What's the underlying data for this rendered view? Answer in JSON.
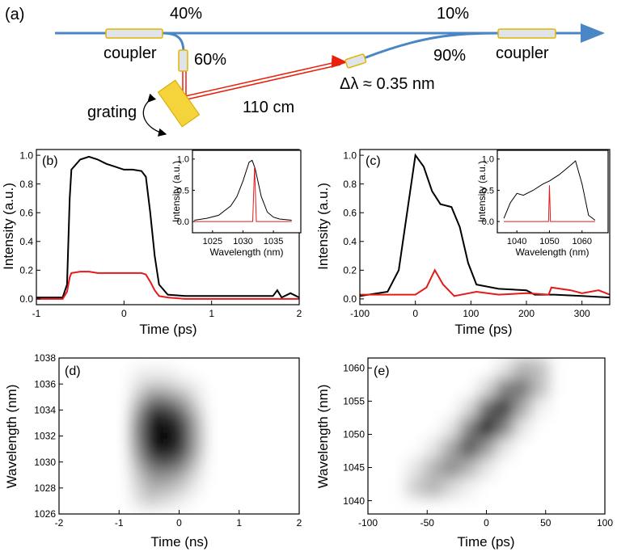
{
  "diagram": {
    "label": "(a)",
    "split_40": "40%",
    "split_10": "10%",
    "coupler_left": "coupler",
    "split_60": "60%",
    "split_90": "90%",
    "coupler_right": "coupler",
    "grating": "grating",
    "length": "110 cm",
    "bandwidth": "Δλ ≈ 0.35 nm"
  },
  "chart_data": [
    {
      "type": "line",
      "label": "(b)",
      "xlabel": "Time (ps)",
      "ylabel": "Intensity (a.u.)",
      "xlim": [
        -1,
        2
      ],
      "ylim": [
        -0.04,
        1.04
      ],
      "xticks": [
        -1,
        0,
        1,
        2
      ],
      "yticks": [
        {
          "value": 0,
          "label": "0.0"
        },
        0.2,
        0.4,
        0.6,
        0.8,
        {
          "value": 1,
          "label": "1.0"
        }
      ],
      "series": [
        {
          "color": "#000000",
          "x": [
            -1,
            -0.7,
            -0.65,
            -0.62,
            -0.6,
            -0.5,
            -0.4,
            -0.3,
            -0.2,
            -0.1,
            0,
            0.1,
            0.2,
            0.25,
            0.3,
            0.35,
            0.4,
            0.5,
            0.7,
            1,
            1.5,
            1.7,
            1.75,
            1.8,
            1.9,
            2
          ],
          "values": [
            0.01,
            0.01,
            0.1,
            0.7,
            0.9,
            0.97,
            0.99,
            0.97,
            0.94,
            0.92,
            0.9,
            0.9,
            0.89,
            0.85,
            0.6,
            0.3,
            0.1,
            0.03,
            0.02,
            0.02,
            0.02,
            0.02,
            0.06,
            0.01,
            0.04,
            0.01
          ]
        },
        {
          "color": "#e41a1c",
          "x": [
            -1,
            -0.7,
            -0.65,
            -0.62,
            -0.6,
            -0.5,
            -0.4,
            -0.3,
            -0.2,
            -0.1,
            0,
            0.1,
            0.2,
            0.25,
            0.3,
            0.35,
            0.4,
            0.5,
            0.7,
            1,
            1.5,
            1.7,
            1.75,
            1.8,
            1.9,
            2
          ],
          "values": [
            0,
            0,
            0.05,
            0.15,
            0.18,
            0.19,
            0.19,
            0.18,
            0.18,
            0.18,
            0.18,
            0.18,
            0.18,
            0.17,
            0.12,
            0.06,
            0.02,
            0.01,
            0,
            0,
            0,
            0,
            0,
            0,
            0,
            0
          ]
        }
      ]
    },
    {
      "type": "line",
      "xlabel": "Wavelength (nm)",
      "ylabel": "Intensity (a.u.)",
      "xlim": [
        1021.7,
        1039.5
      ],
      "ylim": [
        -0.18,
        1.14
      ],
      "xticks": [
        1025,
        1030,
        1035
      ],
      "yticks": [
        {
          "value": 0,
          "label": "0.0"
        },
        0.5,
        {
          "value": 1,
          "label": "1.0"
        }
      ],
      "series": [
        {
          "color": "#000000",
          "x": [
            1022,
            1024,
            1026,
            1028,
            1029,
            1030,
            1031,
            1031.5,
            1032,
            1033,
            1034,
            1035,
            1036,
            1038
          ],
          "values": [
            0.02,
            0.05,
            0.1,
            0.25,
            0.4,
            0.65,
            0.95,
            0.98,
            0.85,
            0.4,
            0.15,
            0.07,
            0.04,
            0.02
          ]
        },
        {
          "color": "#e41a1c",
          "x": [
            1022,
            1031.6,
            1031.9,
            1032.2,
            1038
          ],
          "values": [
            0,
            0,
            0.88,
            0,
            0
          ]
        }
      ]
    },
    {
      "type": "line",
      "label": "(c)",
      "xlabel": "Time (ps)",
      "ylabel": "Intensity (a.u.)",
      "xlim": [
        -100,
        350
      ],
      "ylim": [
        -0.04,
        1.04
      ],
      "xticks": [
        -100,
        0,
        100,
        200,
        300
      ],
      "yticks": [
        {
          "value": 0,
          "label": "0.0"
        },
        0.2,
        0.4,
        0.6,
        0.8,
        {
          "value": 1,
          "label": "1.0"
        }
      ],
      "series": [
        {
          "color": "#000000",
          "x": [
            -100,
            -50,
            -30,
            -15,
            0,
            15,
            30,
            45,
            65,
            80,
            95,
            110,
            150,
            200,
            215,
            250,
            300,
            350
          ],
          "values": [
            0.02,
            0.05,
            0.2,
            0.6,
            1,
            0.92,
            0.75,
            0.66,
            0.64,
            0.5,
            0.25,
            0.1,
            0.07,
            0.06,
            0.03,
            0.03,
            0.02,
            0.01
          ]
        },
        {
          "color": "#e41a1c",
          "x": [
            -100,
            0,
            20,
            35,
            50,
            70,
            110,
            150,
            200,
            240,
            245,
            280,
            300,
            330,
            350
          ],
          "values": [
            0.03,
            0.03,
            0.08,
            0.2,
            0.1,
            0.02,
            0.05,
            0.03,
            0.04,
            0.03,
            0.08,
            0.06,
            0.04,
            0.06,
            0.03
          ]
        }
      ]
    },
    {
      "type": "line",
      "xlabel": "Wavelength (nm)",
      "ylabel": "Intensity (a.u.)",
      "xlim": [
        1034,
        1068
      ],
      "ylim": [
        -0.18,
        1.14
      ],
      "xticks": [
        1040,
        1050,
        1060
      ],
      "yticks": [
        {
          "value": 0,
          "label": "0.0"
        },
        0.5,
        {
          "value": 1,
          "label": "1.0"
        }
      ],
      "series": [
        {
          "color": "#000000",
          "x": [
            1036,
            1038,
            1040,
            1042,
            1045,
            1048,
            1050,
            1053,
            1056,
            1058,
            1060,
            1062,
            1064
          ],
          "values": [
            0.05,
            0.3,
            0.45,
            0.42,
            0.5,
            0.6,
            0.65,
            0.75,
            0.88,
            0.97,
            0.6,
            0.1,
            0.02
          ]
        },
        {
          "color": "#e41a1c",
          "x": [
            1036,
            1049.7,
            1050,
            1050.3,
            1064
          ],
          "values": [
            0,
            0,
            0.58,
            0,
            0
          ]
        }
      ]
    },
    {
      "type": "heatmap",
      "label": "(d)",
      "xlabel": "Time (ns)",
      "ylabel": "Wavelength (nm)",
      "xlim": [
        -2,
        2
      ],
      "ylim": [
        1026,
        1038
      ],
      "xticks": [
        -2,
        -1,
        0,
        1,
        2
      ],
      "yticks": [
        1026,
        1028,
        1030,
        1032,
        1034,
        1036,
        1038
      ],
      "x": [
        -0.7,
        -0.5,
        -0.3,
        -0.1,
        0.1,
        0.3
      ],
      "y": [
        1027,
        1028,
        1029,
        1030,
        1031,
        1032,
        1033,
        1034,
        1035,
        1036,
        1037
      ],
      "z": [
        [
          0.1,
          0.2,
          0.15,
          0.1,
          0.05,
          0
        ],
        [
          0.15,
          0.3,
          0.3,
          0.25,
          0.15,
          0.05
        ],
        [
          0.2,
          0.4,
          0.45,
          0.4,
          0.3,
          0.1
        ],
        [
          0.3,
          0.6,
          0.7,
          0.65,
          0.5,
          0.2
        ],
        [
          0.4,
          0.85,
          0.95,
          0.9,
          0.7,
          0.3
        ],
        [
          0.45,
          0.95,
          1,
          0.95,
          0.75,
          0.3
        ],
        [
          0.45,
          0.9,
          0.95,
          0.9,
          0.7,
          0.3
        ],
        [
          0.35,
          0.75,
          0.8,
          0.7,
          0.5,
          0.2
        ],
        [
          0.2,
          0.45,
          0.5,
          0.4,
          0.3,
          0.1
        ],
        [
          0.1,
          0.2,
          0.2,
          0.15,
          0.1,
          0.05
        ],
        [
          0.05,
          0.05,
          0.05,
          0.05,
          0,
          0
        ]
      ]
    },
    {
      "type": "heatmap",
      "label": "(e)",
      "xlabel": "Time (ps)",
      "ylabel": "Wavelength (nm)",
      "xlim": [
        -100,
        100
      ],
      "ylim": [
        1038,
        1061.5
      ],
      "xticks": [
        -100,
        -50,
        0,
        50,
        100
      ],
      "yticks": [
        1040,
        1045,
        1050,
        1055,
        1060
      ],
      "x": [
        -60,
        -45,
        -30,
        -15,
        0,
        15,
        30,
        45
      ],
      "y": [
        1042,
        1045,
        1048,
        1051,
        1054,
        1057,
        1060
      ],
      "z": [
        [
          0.2,
          0.3,
          0.15,
          0.05,
          0,
          0,
          0,
          0
        ],
        [
          0.1,
          0.3,
          0.45,
          0.3,
          0.1,
          0,
          0,
          0
        ],
        [
          0,
          0.1,
          0.35,
          0.7,
          0.4,
          0.1,
          0,
          0
        ],
        [
          0,
          0,
          0.1,
          0.5,
          1,
          0.5,
          0.1,
          0
        ],
        [
          0,
          0,
          0,
          0.15,
          0.6,
          0.8,
          0.35,
          0.05
        ],
        [
          0,
          0,
          0,
          0,
          0.15,
          0.5,
          0.55,
          0.25
        ],
        [
          0,
          0,
          0,
          0,
          0,
          0.1,
          0.3,
          0.25
        ]
      ]
    }
  ]
}
